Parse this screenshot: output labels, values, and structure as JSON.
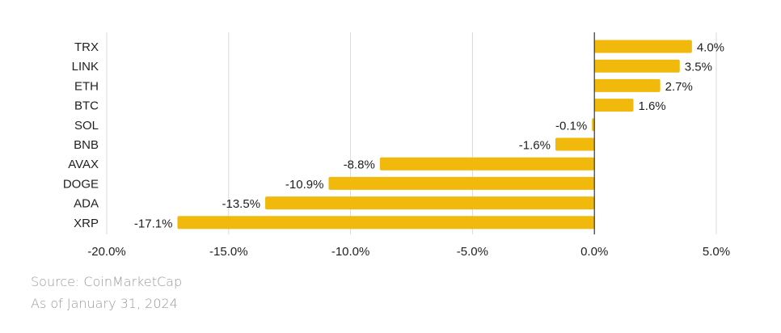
{
  "chart_data": {
    "type": "bar",
    "orientation": "horizontal",
    "title": "",
    "xlabel": "",
    "ylabel": "",
    "categories": [
      "TRX",
      "LINK",
      "ETH",
      "BTC",
      "SOL",
      "BNB",
      "AVAX",
      "DOGE",
      "ADA",
      "XRP"
    ],
    "values": [
      4.0,
      3.5,
      2.7,
      1.6,
      -0.1,
      -1.6,
      -8.8,
      -10.9,
      -13.5,
      -17.1
    ],
    "value_labels": [
      "4.0%",
      "3.5%",
      "2.7%",
      "1.6%",
      "-0.1%",
      "-1.6%",
      "-8.8%",
      "-10.9%",
      "-13.5%",
      "-17.1%"
    ],
    "xlim": [
      -20,
      5
    ],
    "x_ticks": [
      -20,
      -15,
      -10,
      -5,
      0,
      5
    ],
    "x_tick_labels": [
      "-20.0%",
      "-15.0%",
      "-10.0%",
      "-5.0%",
      "0.0%",
      "5.0%"
    ],
    "grid": true,
    "legend": null,
    "bar_color": "#F0B90B"
  },
  "footer": {
    "source": "Source: CoinMarketCap",
    "date": "As of January 31, 2024"
  },
  "colors": {
    "bar": "#F0B90B",
    "grid": "#d9d9d9",
    "zero_line": "#333333",
    "text": "#1f1f1f",
    "footer_text": "#9a9a9a"
  }
}
